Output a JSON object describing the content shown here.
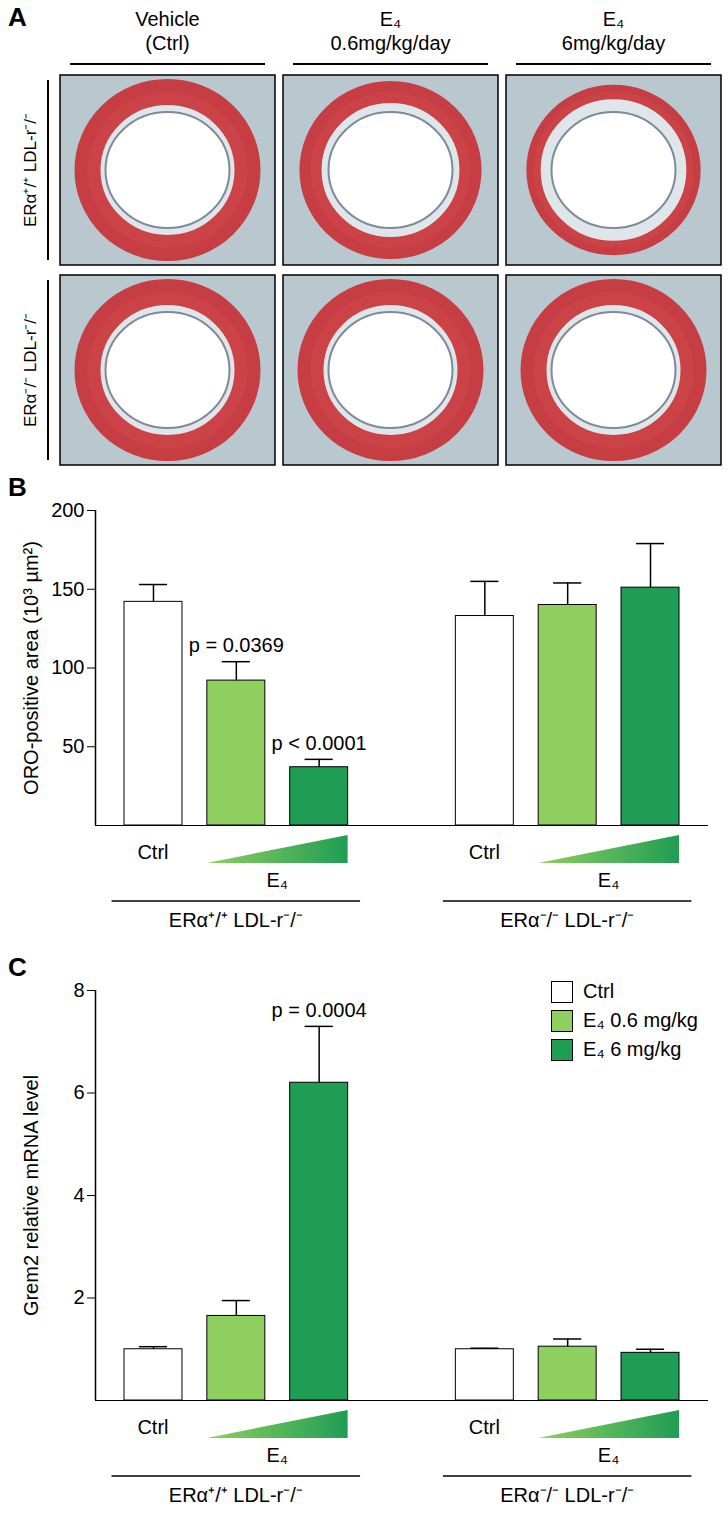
{
  "panel_a": {
    "panel_label": "A",
    "columns": [
      [
        "Vehicle",
        "(Ctrl)"
      ],
      [
        "E₄",
        "0.6mg/kg/day"
      ],
      [
        "E₄",
        "6mg/kg/day"
      ]
    ],
    "rows": [
      "ERα⁺/⁺ LDL-r⁻/⁻",
      "ERα⁻/⁻ LDL-r⁻/⁻"
    ]
  },
  "chart_data": [
    {
      "type": "bar",
      "panel_label": "B",
      "y_label": "ORO-positive area (10³ µm²)",
      "categories": [
        "ERα⁺/⁺ LDL-r⁻/⁻",
        "ERα⁻/⁻ LDL-r⁻/⁻"
      ],
      "ctrl_label": "Ctrl",
      "dose_label": "E₄",
      "series": [
        {
          "color": "#ffffff",
          "values": [
            142,
            133
          ],
          "errors": [
            11,
            22
          ],
          "p_values": [
            null,
            null
          ]
        },
        {
          "color": "#8fcf5f",
          "values": [
            92,
            140
          ],
          "errors": [
            12,
            14
          ],
          "p_values": [
            "p = 0.0369",
            null
          ]
        },
        {
          "color": "#1f9d55",
          "values": [
            37,
            151
          ],
          "errors": [
            5,
            28
          ],
          "p_values": [
            "p < 0.0001",
            null
          ]
        }
      ],
      "ylim": [
        0,
        200
      ],
      "yticks": [
        50,
        100,
        150,
        200
      ]
    },
    {
      "type": "bar",
      "panel_label": "C",
      "y_label": "Grem2 relative mRNA level",
      "categories": [
        "ERα⁺/⁺ LDL-r⁻/⁻",
        "ERα⁻/⁻ LDL-r⁻/⁻"
      ],
      "ctrl_label": "Ctrl",
      "dose_label": "E₄",
      "legend": "top-right",
      "series": [
        {
          "name": "Ctrl",
          "color": "#ffffff",
          "values": [
            1.0,
            1.0
          ],
          "errors": [
            0.05,
            0.02
          ],
          "p_values": [
            null,
            null
          ]
        },
        {
          "name": "E₄ 0.6 mg/kg",
          "color": "#8fcf5f",
          "values": [
            1.65,
            1.05
          ],
          "errors": [
            0.3,
            0.15
          ],
          "p_values": [
            null,
            null
          ]
        },
        {
          "name": "E₄ 6 mg/kg",
          "color": "#1f9d55",
          "values": [
            6.2,
            0.93
          ],
          "errors": [
            1.1,
            0.07
          ],
          "p_values": [
            "p = 0.0004",
            null
          ]
        }
      ],
      "ylim": [
        0,
        8
      ],
      "yticks": [
        2,
        4,
        6,
        8
      ]
    }
  ]
}
